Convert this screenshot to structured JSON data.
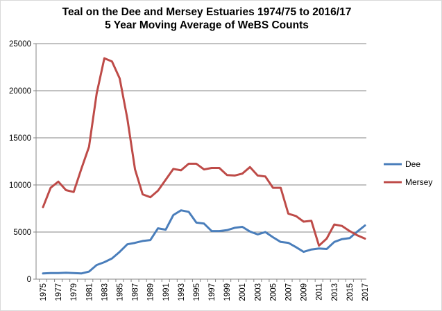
{
  "chart_data": {
    "type": "line",
    "title": "Teal on the Dee and Mersey Estuaries 1974/75 to 2016/17",
    "subtitle": "5 Year Moving Average of WeBS Counts",
    "xlabel": "",
    "ylabel": "",
    "ylim": [
      0,
      25000
    ],
    "yticks": [
      "0",
      "5000",
      "10000",
      "15000",
      "20000",
      "25000"
    ],
    "xticks": [
      "1975",
      "1977",
      "1979",
      "1981",
      "1983",
      "1985",
      "1987",
      "1989",
      "1991",
      "1993",
      "1995",
      "1997",
      "1999",
      "2001",
      "2003",
      "2005",
      "2007",
      "2009",
      "2011",
      "2013",
      "2015",
      "2017"
    ],
    "grid": true,
    "legend_position": "right",
    "x": [
      1975,
      1976,
      1977,
      1978,
      1979,
      1980,
      1981,
      1982,
      1983,
      1984,
      1985,
      1986,
      1987,
      1988,
      1989,
      1990,
      1991,
      1992,
      1993,
      1994,
      1995,
      1996,
      1997,
      1998,
      1999,
      2000,
      2001,
      2002,
      2003,
      2004,
      2005,
      2006,
      2007,
      2008,
      2009,
      2010,
      2011,
      2012,
      2013,
      2014,
      2015,
      2016,
      2017
    ],
    "series": [
      {
        "name": "Dee",
        "color": "#4a7ebb",
        "values": [
          600,
          650,
          650,
          680,
          650,
          600,
          800,
          1500,
          1800,
          2200,
          2900,
          3700,
          3850,
          4050,
          4150,
          5400,
          5250,
          6800,
          7300,
          7150,
          6000,
          5900,
          5100,
          5100,
          5200,
          5450,
          5550,
          5050,
          4750,
          5000,
          4450,
          3950,
          3850,
          3400,
          2900,
          3150,
          3250,
          3200,
          3950,
          4250,
          4350,
          5050,
          5700
        ]
      },
      {
        "name": "Mersey",
        "color": "#be4b48",
        "values": [
          7650,
          9700,
          10350,
          9450,
          9250,
          11700,
          14050,
          19700,
          23450,
          23100,
          21300,
          17050,
          11650,
          9000,
          8700,
          9400,
          10550,
          11700,
          11550,
          12250,
          12250,
          11650,
          11800,
          11800,
          11050,
          11000,
          11200,
          11900,
          11000,
          10900,
          9700,
          9700,
          6950,
          6700,
          6100,
          6200,
          3550,
          4300,
          5800,
          5650,
          5100,
          4650,
          4300
        ]
      }
    ]
  }
}
